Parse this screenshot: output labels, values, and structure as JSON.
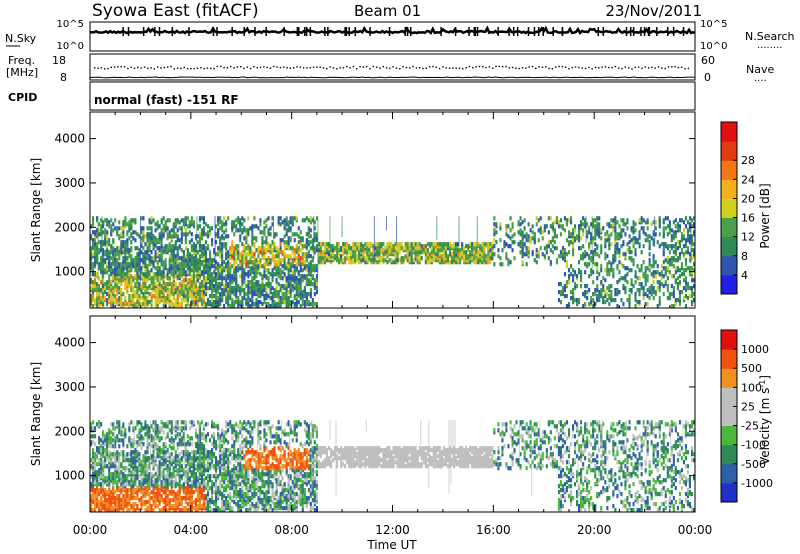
{
  "header": {
    "title": "Syowa East (fitACF)",
    "beam": "Beam 01",
    "date": "23/Nov/2011"
  },
  "nsky_panel": {
    "left_label": "N.Sky",
    "right_label": "N.Search",
    "right_dots": "........",
    "left_ticks": [
      "10^5",
      "10^0"
    ],
    "right_ticks": [
      "10^5",
      "10^0"
    ]
  },
  "freq_panel": {
    "left_label_line1": "Freq.",
    "left_label_line2": "[MHz]",
    "right_label": "Nave",
    "right_dots": "....",
    "left_ticks": [
      "18",
      "8"
    ],
    "right_ticks": [
      "60",
      "0"
    ]
  },
  "cpid": {
    "label": "CPID",
    "value": "normal (fast) -151 RF"
  },
  "colors": {
    "power": [
      "#1f1fe6",
      "#2f55b0",
      "#2e8a57",
      "#4aa048",
      "#cfd020",
      "#f2b020",
      "#f07818",
      "#e03c10",
      "#e01010"
    ],
    "velocity": [
      "#e01010",
      "#f05010",
      "#f09020",
      "#bfbfbf",
      "#bfbfbf",
      "#4ab83a",
      "#2e8a57",
      "#2f5fa8",
      "#2030c8"
    ]
  },
  "chart_data": [
    {
      "type": "heatmap",
      "name": "power",
      "ylabel": "Slant Range [km]",
      "xlabel": "",
      "ylim": [
        180,
        4600
      ],
      "xlim": [
        0,
        24
      ],
      "yticks": [
        "1000",
        "2000",
        "3000",
        "4000"
      ],
      "xticks": [
        "00:00",
        "04:00",
        "08:00",
        "12:00",
        "16:00",
        "20:00",
        "00:00"
      ],
      "colorbar_label": "Power [dB]",
      "colorbar_ticks": [
        "4",
        "8",
        "12",
        "16",
        "20",
        "24",
        "28"
      ],
      "colorbar_range": [
        0,
        30
      ]
    },
    {
      "type": "heatmap",
      "name": "velocity",
      "ylabel": "Slant Range [km]",
      "xlabel": "Time UT",
      "ylim": [
        180,
        4600
      ],
      "xlim": [
        0,
        24
      ],
      "yticks": [
        "1000",
        "2000",
        "3000",
        "4000"
      ],
      "xticks": [
        "00:00",
        "04:00",
        "08:00",
        "12:00",
        "16:00",
        "20:00",
        "00:00"
      ],
      "colorbar_label": "Velocity [m s",
      "colorbar_label_sup": "-1",
      "colorbar_label_end": "]",
      "colorbar_ticks": [
        "1000",
        "500",
        "100",
        "25",
        "-25",
        "-100",
        "-500",
        "-1000"
      ]
    }
  ]
}
